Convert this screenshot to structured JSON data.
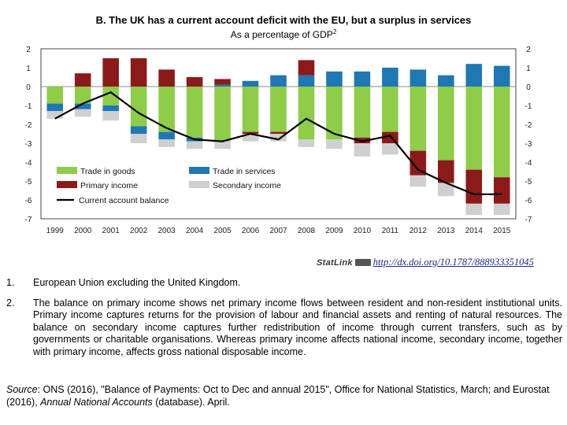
{
  "chart_data": {
    "type": "bar",
    "stacked": true,
    "title": "B. The UK has a current account deficit with the EU, but a surplus in services",
    "subtitle": "As a percentage of GDP",
    "subtitle_footnote": "2",
    "xlabel": "",
    "ylabel": "",
    "ylim": [
      -7,
      2
    ],
    "yticks": [
      2,
      1,
      0,
      -1,
      -2,
      -3,
      -4,
      -5,
      -6,
      -7
    ],
    "categories": [
      "1999",
      "2000",
      "2001",
      "2002",
      "2003",
      "2004",
      "2005",
      "2006",
      "2007",
      "2008",
      "2009",
      "2010",
      "2011",
      "2012",
      "2013",
      "2014",
      "2015"
    ],
    "series": [
      {
        "name": "Trade in goods",
        "color": "#8fcc4a",
        "values": [
          -0.9,
          -0.9,
          -1.0,
          -2.1,
          -2.4,
          -2.7,
          -2.9,
          -2.4,
          -2.4,
          -2.8,
          -2.8,
          -2.7,
          -2.4,
          -3.4,
          -3.9,
          -4.4,
          -4.8
        ]
      },
      {
        "name": "Trade in services",
        "color": "#1f77b4",
        "values": [
          -0.4,
          -0.3,
          -0.3,
          -0.4,
          -0.4,
          -0.2,
          0.1,
          0.3,
          0.6,
          0.6,
          0.8,
          0.8,
          1.0,
          0.9,
          0.6,
          1.2,
          1.1
        ]
      },
      {
        "name": "Primary income",
        "color": "#8b1a1a",
        "values": [
          0.0,
          0.7,
          1.5,
          1.5,
          0.9,
          0.5,
          0.3,
          -0.1,
          -0.1,
          0.8,
          0.0,
          -0.3,
          -0.6,
          -1.3,
          -1.2,
          -1.8,
          -1.4
        ]
      },
      {
        "name": "Secondary income",
        "color": "#cfcfcf",
        "values": [
          -0.4,
          -0.4,
          -0.5,
          -0.5,
          -0.4,
          -0.4,
          -0.4,
          -0.4,
          -0.4,
          -0.4,
          -0.5,
          -0.7,
          -0.6,
          -0.6,
          -0.7,
          -0.6,
          -0.6
        ]
      }
    ],
    "line_series": {
      "name": "Current account balance",
      "color": "#000000",
      "values": [
        -1.7,
        -0.9,
        -0.3,
        -1.4,
        -2.2,
        -2.8,
        -2.9,
        -2.5,
        -2.8,
        -1.7,
        -2.5,
        -2.9,
        -2.6,
        -4.4,
        -5.1,
        -5.7,
        -5.7
      ]
    },
    "legend": [
      "Trade in goods",
      "Trade in services",
      "Primary income",
      "Secondary income",
      "Current account balance"
    ],
    "legend_position": "bottom-left"
  },
  "statlink": {
    "label": "StatLink",
    "url": "http://dx.doi.org/10.1787/888933351045"
  },
  "notes": [
    {
      "num": "1.",
      "text": "European Union excluding the United Kingdom."
    },
    {
      "num": "2.",
      "text": "The balance on primary income shows net primary income flows between resident and non-resident institutional units. Primary income captures returns for the provision of labour and financial assets and renting of natural resources. The balance on secondary income captures further redistribution of income through current transfers, such as by governments or charitable organisations. Whereas primary income affects national income, secondary income, together with primary income, affects gross national disposable income."
    }
  ],
  "source": {
    "label": "Source",
    "text": ": ONS (2016), \"Balance of Payments: Oct to Dec and annual 2015\", Office for National Statistics, March; and Eurostat (2016), ",
    "italic": "Annual National Accounts",
    "tail": " (database). April."
  }
}
